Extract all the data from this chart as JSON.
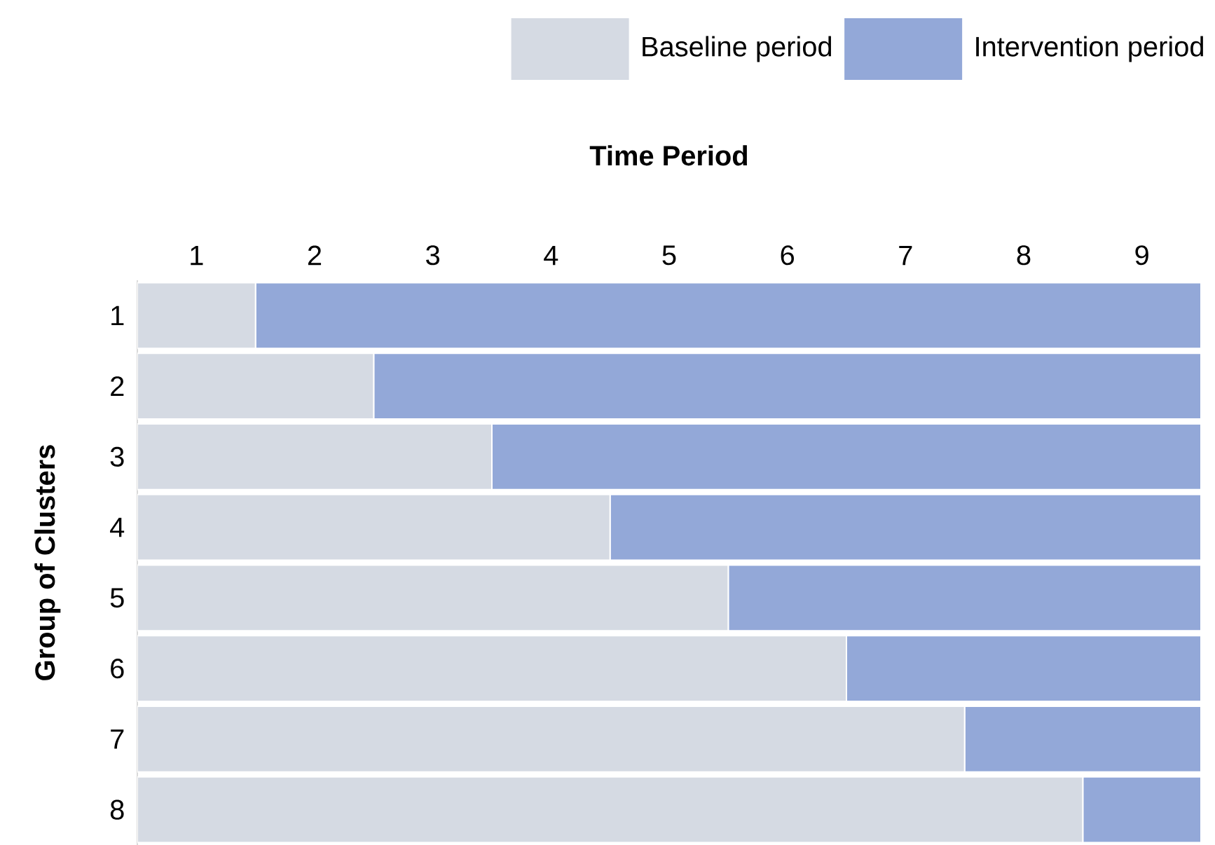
{
  "chart_data": {
    "type": "bar",
    "orientation": "horizontal",
    "stacked": true,
    "xlabel": "Time Period",
    "ylabel": "Group of Clusters",
    "categories": [
      "1",
      "2",
      "3",
      "4",
      "5",
      "6",
      "7",
      "8"
    ],
    "series": [
      {
        "name": "Baseline period",
        "color": "#d5dae3",
        "values": [
          1,
          2,
          3,
          4,
          5,
          6,
          7,
          8
        ]
      },
      {
        "name": "Intervention period",
        "color": "#93a8d8",
        "values": [
          8,
          7,
          6,
          5,
          4,
          3,
          2,
          1
        ]
      }
    ],
    "xlim": [
      0,
      9
    ],
    "xticks": [
      {
        "value": 0.5,
        "label": "1"
      },
      {
        "value": 1.5,
        "label": "2"
      },
      {
        "value": 2.5,
        "label": "3"
      },
      {
        "value": 3.5,
        "label": "4"
      },
      {
        "value": 4.5,
        "label": "5"
      },
      {
        "value": 5.5,
        "label": "6"
      },
      {
        "value": 6.5,
        "label": "7"
      },
      {
        "value": 7.5,
        "label": "8"
      },
      {
        "value": 8.5,
        "label": "9"
      }
    ],
    "legend": "top right",
    "grid": false
  }
}
